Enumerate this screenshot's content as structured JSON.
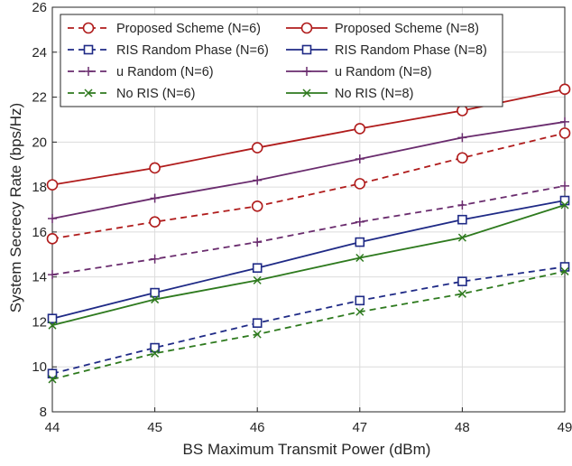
{
  "chart_data": {
    "type": "line",
    "xlabel": "BS Maximum Transmit Power (dBm)",
    "ylabel": "System Secrecy Rate (bps/Hz)",
    "x": [
      44,
      45,
      46,
      47,
      48,
      49
    ],
    "xlim": [
      44,
      49
    ],
    "ylim": [
      8,
      26
    ],
    "xticks": [
      "44",
      "45",
      "46",
      "47",
      "48",
      "49"
    ],
    "yticks": [
      "8",
      "10",
      "12",
      "14",
      "16",
      "18",
      "20",
      "22",
      "24",
      "26"
    ],
    "grid": true,
    "legend_position": "top-left",
    "series": [
      {
        "name": "Proposed Scheme (N=6)",
        "color": "#b01c1c",
        "dash": "dashed",
        "marker": "circle",
        "values": [
          15.7,
          16.45,
          17.15,
          18.15,
          19.3,
          20.4
        ]
      },
      {
        "name": "Proposed Scheme (N=8)",
        "color": "#b01c1c",
        "dash": "solid",
        "marker": "circle",
        "values": [
          18.1,
          18.85,
          19.75,
          20.6,
          21.4,
          22.35
        ]
      },
      {
        "name": "RIS Random Phase (N=6)",
        "color": "#1f2a86",
        "dash": "dashed",
        "marker": "square",
        "values": [
          9.7,
          10.85,
          11.95,
          12.95,
          13.8,
          14.45
        ]
      },
      {
        "name": "RIS Random Phase (N=8)",
        "color": "#1f2a86",
        "dash": "solid",
        "marker": "square",
        "values": [
          12.15,
          13.3,
          14.4,
          15.55,
          16.55,
          17.4
        ]
      },
      {
        "name": "u Random (N=6)",
        "color": "#6a2c6e",
        "dash": "dashed",
        "marker": "plus",
        "values": [
          14.1,
          14.8,
          15.55,
          16.45,
          17.2,
          18.05
        ]
      },
      {
        "name": "u Random (N=8)",
        "color": "#6a2c6e",
        "dash": "solid",
        "marker": "plus",
        "values": [
          16.6,
          17.5,
          18.3,
          19.25,
          20.2,
          20.9
        ]
      },
      {
        "name": "No RIS (N=6)",
        "color": "#2e7a1e",
        "dash": "dashed",
        "marker": "x",
        "values": [
          9.45,
          10.6,
          11.45,
          12.45,
          13.25,
          14.25
        ]
      },
      {
        "name": "No RIS (N=8)",
        "color": "#2e7a1e",
        "dash": "solid",
        "marker": "x",
        "values": [
          11.85,
          13.0,
          13.85,
          14.85,
          15.75,
          17.2
        ]
      }
    ]
  }
}
